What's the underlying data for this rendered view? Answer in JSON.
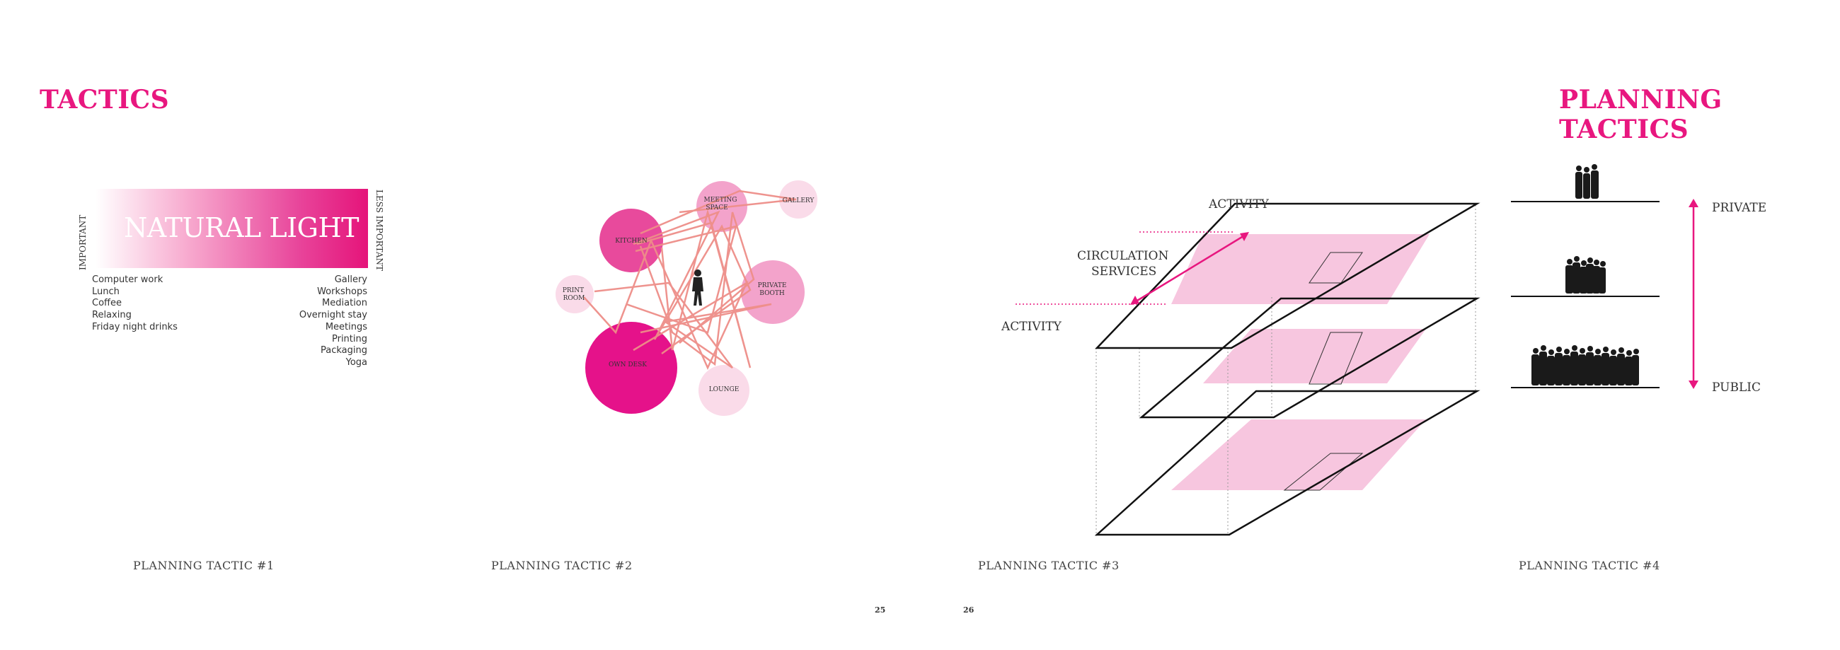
{
  "headings": {
    "left": "TACTICS",
    "right": "PLANNING TACTICS"
  },
  "tactic1": {
    "title": "NATURAL LIGHT",
    "important_label": "IMPORTANT",
    "less_important_label": "LESS IMPORTANT",
    "left_items": [
      "Computer work",
      "Lunch",
      "Coffee",
      "Relaxing",
      "Friday night drinks"
    ],
    "right_items": [
      "Gallery",
      "Workshops",
      "Mediation",
      "Overnight stay",
      "Meetings",
      "Printing",
      "Packaging",
      "Yoga"
    ],
    "caption": "PLANNING TACTIC #1"
  },
  "tactic2": {
    "bubbles": {
      "kitchen": "KITCHEN",
      "meeting_line1": "MEETING",
      "meeting_line2": "SPACE",
      "gallery": "GALLERY",
      "print_line1": "PRINT",
      "print_line2": "ROOM",
      "private_line1": "PRIVATE",
      "private_line2": "BOOTH",
      "own_desk": "OWN DESK",
      "lounge": "LOUNGE"
    },
    "caption": "PLANNING TACTIC #2"
  },
  "tactic3": {
    "activity_top": "ACTIVITY",
    "circulation_line1": "CIRCULATION",
    "circulation_line2": "SERVICES",
    "activity_left": "ACTIVITY",
    "caption": "PLANNING TACTIC #3"
  },
  "tactic4": {
    "private_label": "PRIVATE",
    "public_label": "PUBLIC",
    "caption": "PLANNING TACTIC #4"
  },
  "page_numbers": {
    "left": "25",
    "right": "26"
  },
  "colors": {
    "accent": "#e8177f",
    "light_pink": "#f7c6df",
    "line_salmon": "#ee8e88",
    "dark": "#222222"
  }
}
